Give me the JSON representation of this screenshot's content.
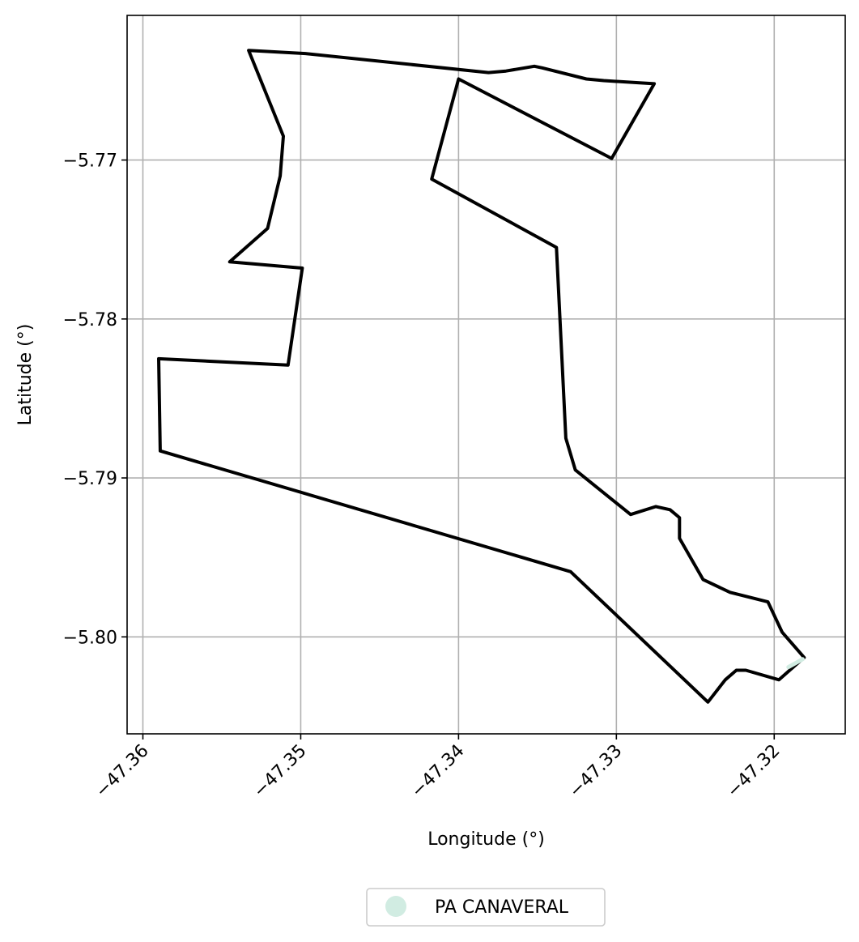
{
  "chart_data": {
    "type": "map",
    "title": "",
    "xlabel": "Longitude (°)",
    "ylabel": "Latitude (°)",
    "xlim": [
      -47.361,
      -47.3155
    ],
    "ylim": [
      -5.8061,
      -5.7609
    ],
    "x_ticks": [
      -47.36,
      -47.35,
      -47.34,
      -47.33,
      -47.32
    ],
    "x_tick_labels": [
      "−47.36",
      "−47.35",
      "−47.34",
      "−47.33",
      "−47.32"
    ],
    "y_ticks": [
      -5.77,
      -5.78,
      -5.79,
      -5.8
    ],
    "y_tick_labels": [
      "−5.77",
      "−5.78",
      "−5.79",
      "−5.80"
    ],
    "grid": true,
    "legend_position": "bottom-center",
    "series": [
      {
        "name": "PA CANAVERAL",
        "fill_color": "#d1ece2",
        "outline_color": "#000000",
        "outline_coords": [
          [
            -47.3533,
            -5.7631
          ],
          [
            -47.3497,
            -5.7633
          ],
          [
            -47.3381,
            -5.7645
          ],
          [
            -47.337,
            -5.7644
          ],
          [
            -47.3352,
            -5.7641
          ],
          [
            -47.3347,
            -5.7642
          ],
          [
            -47.3319,
            -5.7649
          ],
          [
            -47.3308,
            -5.765
          ],
          [
            -47.3276,
            -5.7652
          ],
          [
            -47.3303,
            -5.7699
          ],
          [
            -47.34,
            -5.7649
          ],
          [
            -47.3417,
            -5.7712
          ],
          [
            -47.3338,
            -5.7755
          ],
          [
            -47.3332,
            -5.7875
          ],
          [
            -47.3326,
            -5.7895
          ],
          [
            -47.3291,
            -5.7923
          ],
          [
            -47.3275,
            -5.7918
          ],
          [
            -47.3266,
            -5.792
          ],
          [
            -47.326,
            -5.7925
          ],
          [
            -47.326,
            -5.7938
          ],
          [
            -47.3245,
            -5.7964
          ],
          [
            -47.3228,
            -5.7972
          ],
          [
            -47.3204,
            -5.7978
          ],
          [
            -47.3195,
            -5.7997
          ],
          [
            -47.3181,
            -5.8013
          ],
          [
            -47.3197,
            -5.8027
          ],
          [
            -47.3218,
            -5.8021
          ],
          [
            -47.3224,
            -5.8021
          ],
          [
            -47.3231,
            -5.8027
          ],
          [
            -47.3242,
            -5.8041
          ],
          [
            -47.3329,
            -5.7959
          ],
          [
            -47.3589,
            -5.7883
          ],
          [
            -47.359,
            -5.7825
          ],
          [
            -47.3508,
            -5.7829
          ],
          [
            -47.3499,
            -5.7768
          ],
          [
            -47.3545,
            -5.7764
          ],
          [
            -47.3521,
            -5.7743
          ],
          [
            -47.3513,
            -5.771
          ],
          [
            -47.3511,
            -5.7685
          ],
          [
            -47.3533,
            -5.7631
          ]
        ],
        "marker_coords": [
          [
            -47.3191,
            -5.8019
          ],
          [
            -47.3182,
            -5.8014
          ]
        ]
      }
    ]
  }
}
